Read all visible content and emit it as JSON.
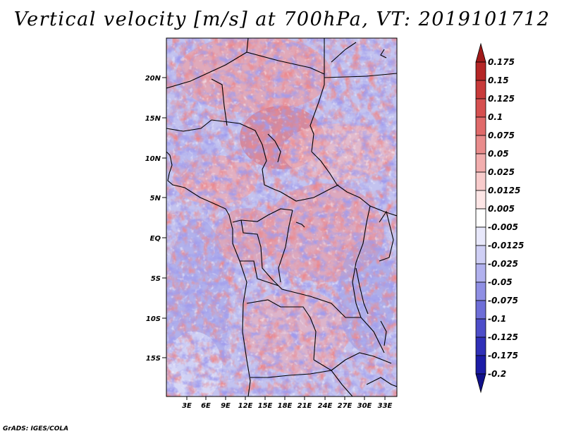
{
  "title": "Vertical velocity [m/s] at 700hPa, VT: 2019101712",
  "credit": "GrADS: IGES/COLA",
  "map": {
    "lat_labels": [
      "20N",
      "15N",
      "10N",
      "5N",
      "EQ",
      "5S",
      "10S",
      "15S"
    ],
    "lon_labels": [
      "3E",
      "6E",
      "9E",
      "12E",
      "15E",
      "18E",
      "21E",
      "24E",
      "27E",
      "30E",
      "33E"
    ],
    "extent": {
      "lon_min": 0,
      "lon_max": 34.5,
      "lat_min": -19.5,
      "lat_max": 24.5
    }
  },
  "colorbar": {
    "levels": [
      "0.175",
      "0.15",
      "0.125",
      "0.1",
      "0.075",
      "0.05",
      "0.025",
      "0.0125",
      "0.005",
      "-0.005",
      "-0.0125",
      "-0.025",
      "-0.05",
      "-0.075",
      "-0.1",
      "-0.125",
      "-0.175",
      "-0.2"
    ],
    "colors": [
      "#a01a1a",
      "#b52626",
      "#c83a3a",
      "#d65050",
      "#e06a6a",
      "#e98c8c",
      "#f2aeae",
      "#f8cccc",
      "#fde6e6",
      "#ffffff",
      "#e8e8fb",
      "#cfcff5",
      "#b1b1ee",
      "#8f8fe4",
      "#6e6ed8",
      "#4d4dc9",
      "#3030b8",
      "#1c1ca6",
      "#10108a"
    ]
  }
}
